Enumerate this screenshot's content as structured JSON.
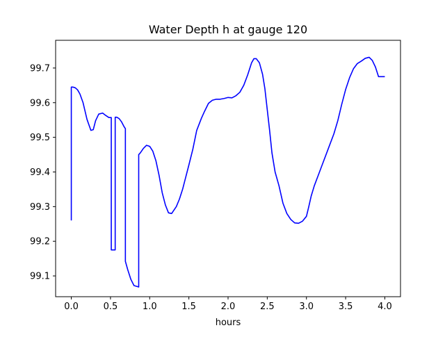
{
  "chart_data": {
    "type": "line",
    "title": "Water Depth h at gauge 120",
    "xlabel": "hours",
    "ylabel": "",
    "xlim": [
      -0.2,
      4.2
    ],
    "ylim": [
      99.04,
      99.78
    ],
    "xticks": [
      0.0,
      0.5,
      1.0,
      1.5,
      2.0,
      2.5,
      3.0,
      3.5,
      4.0
    ],
    "xtick_labels": [
      "0.0",
      "0.5",
      "1.0",
      "1.5",
      "2.0",
      "2.5",
      "3.0",
      "3.5",
      "4.0"
    ],
    "yticks": [
      99.1,
      99.2,
      99.3,
      99.4,
      99.5,
      99.6,
      99.7
    ],
    "ytick_labels": [
      "99.1",
      "99.2",
      "99.3",
      "99.4",
      "99.5",
      "99.6",
      "99.7"
    ],
    "grid": false,
    "legend": "none",
    "line_color": "#0000ff",
    "series": [
      {
        "x": [
          0.0,
          0.0,
          0.02,
          0.05,
          0.08,
          0.11,
          0.15,
          0.2,
          0.25,
          0.28,
          0.31,
          0.35,
          0.4,
          0.44,
          0.48,
          0.5,
          0.51,
          0.51,
          0.56,
          0.56,
          0.58,
          0.61,
          0.64,
          0.67,
          0.69,
          0.69,
          0.72,
          0.76,
          0.8,
          0.86,
          0.86,
          0.88,
          0.92,
          0.96,
          1.0,
          1.04,
          1.08,
          1.12,
          1.16,
          1.2,
          1.24,
          1.28,
          1.31,
          1.34,
          1.38,
          1.42,
          1.46,
          1.5,
          1.55,
          1.6,
          1.66,
          1.7,
          1.75,
          1.8,
          1.85,
          1.9,
          1.95,
          2.0,
          2.05,
          2.1,
          2.15,
          2.2,
          2.25,
          2.3,
          2.33,
          2.36,
          2.4,
          2.44,
          2.47,
          2.5,
          2.53,
          2.56,
          2.6,
          2.65,
          2.7,
          2.75,
          2.8,
          2.85,
          2.9,
          2.95,
          3.0,
          3.03,
          3.06,
          3.1,
          3.15,
          3.2,
          3.25,
          3.3,
          3.35,
          3.4,
          3.45,
          3.5,
          3.55,
          3.6,
          3.65,
          3.7,
          3.75,
          3.8,
          3.84,
          3.88,
          3.92,
          3.96,
          4.0
        ],
        "y": [
          99.26,
          99.645,
          99.645,
          99.643,
          99.637,
          99.625,
          99.6,
          99.552,
          99.52,
          99.522,
          99.548,
          99.567,
          99.57,
          99.563,
          99.557,
          99.557,
          99.557,
          99.175,
          99.175,
          99.558,
          99.558,
          99.554,
          99.545,
          99.532,
          99.525,
          99.142,
          99.118,
          99.09,
          99.072,
          99.068,
          99.45,
          99.455,
          99.468,
          99.477,
          99.474,
          99.46,
          99.432,
          99.39,
          99.34,
          99.305,
          99.282,
          99.28,
          99.29,
          99.3,
          99.322,
          99.35,
          99.385,
          99.42,
          99.465,
          99.52,
          99.555,
          99.575,
          99.598,
          99.607,
          99.61,
          99.61,
          99.612,
          99.615,
          99.614,
          99.62,
          99.63,
          99.65,
          99.68,
          99.715,
          99.727,
          99.727,
          99.715,
          99.682,
          99.64,
          99.58,
          99.52,
          99.455,
          99.4,
          99.36,
          99.31,
          99.28,
          99.263,
          99.253,
          99.252,
          99.258,
          99.272,
          99.3,
          99.33,
          99.36,
          99.39,
          99.42,
          99.45,
          99.48,
          99.51,
          99.548,
          99.595,
          99.638,
          99.672,
          99.698,
          99.713,
          99.72,
          99.728,
          99.731,
          99.722,
          99.703,
          99.675,
          99.675,
          99.675
        ]
      }
    ]
  }
}
